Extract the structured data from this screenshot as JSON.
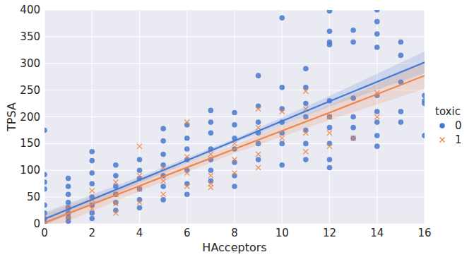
{
  "chart_data": {
    "type": "scatter",
    "x_label": "HAcceptors",
    "y_label": "TPSA",
    "legend_title": "toxic",
    "legend": "right",
    "grid": true,
    "xlim": [
      0,
      16
    ],
    "ylim": [
      0,
      400
    ],
    "xticks": [
      0,
      2,
      4,
      6,
      8,
      10,
      12,
      14,
      16
    ],
    "yticks": [
      0,
      50,
      100,
      150,
      200,
      250,
      300,
      350,
      400
    ],
    "series": [
      {
        "name": "0",
        "color": "#4878CF",
        "marker": "circle",
        "x": [
          0,
          0,
          0,
          0,
          0,
          0,
          0,
          0,
          1,
          1,
          1,
          1,
          1,
          1,
          1,
          1,
          2,
          2,
          2,
          2,
          2,
          2,
          2,
          2,
          3,
          3,
          3,
          3,
          3,
          3,
          4,
          4,
          4,
          4,
          4,
          4,
          5,
          5,
          5,
          5,
          5,
          5,
          5,
          6,
          6,
          6,
          6,
          6,
          6,
          6,
          7,
          7,
          7,
          7,
          7,
          7,
          7,
          8,
          8,
          8,
          8,
          8,
          8,
          8,
          9,
          9,
          9,
          9,
          9,
          9,
          10,
          10,
          10,
          10,
          10,
          10,
          10,
          11,
          11,
          11,
          11,
          11,
          11,
          11,
          12,
          12,
          12,
          12,
          12,
          12,
          12,
          12,
          12,
          12,
          13,
          13,
          13,
          13,
          13,
          13,
          14,
          14,
          14,
          14,
          14,
          14,
          14,
          14,
          14,
          15,
          15,
          15,
          15,
          15,
          16,
          16,
          16,
          16
        ],
        "values": [
          175,
          92,
          78,
          65,
          35,
          20,
          10,
          3,
          85,
          70,
          55,
          40,
          30,
          20,
          12,
          5,
          135,
          118,
          95,
          75,
          50,
          35,
          20,
          10,
          110,
          90,
          70,
          55,
          40,
          25,
          120,
          100,
          85,
          65,
          45,
          30,
          178,
          155,
          130,
          110,
          90,
          70,
          45,
          185,
          160,
          140,
          120,
          100,
          75,
          55,
          212,
          190,
          170,
          140,
          120,
          100,
          80,
          208,
          185,
          160,
          140,
          115,
          90,
          70,
          277,
          220,
          190,
          170,
          150,
          120,
          385,
          255,
          215,
          190,
          170,
          150,
          110,
          290,
          255,
          225,
          200,
          175,
          150,
          120,
          398,
          360,
          340,
          335,
          230,
          200,
          180,
          150,
          120,
          105,
          362,
          340,
          235,
          200,
          180,
          160,
          400,
          378,
          355,
          330,
          240,
          210,
          190,
          165,
          145,
          340,
          315,
          265,
          210,
          190,
          240,
          230,
          225,
          165
        ],
        "fit": {
          "x": [
            0,
            4,
            8,
            12,
            16
          ],
          "values": [
            9,
            82,
            155,
            229,
            302
          ],
          "lower": [
            -3,
            76,
            151,
            219,
            282
          ],
          "upper": [
            21,
            88,
            159,
            239,
            322
          ]
        }
      },
      {
        "name": "1",
        "color": "#EE854A",
        "marker": "x",
        "x": [
          1,
          1,
          2,
          2,
          2,
          3,
          3,
          3,
          3,
          4,
          4,
          4,
          4,
          5,
          5,
          5,
          6,
          6,
          6,
          6,
          7,
          7,
          7,
          7,
          8,
          8,
          8,
          9,
          9,
          9,
          9,
          10,
          10,
          11,
          11,
          11,
          11,
          12,
          12,
          12,
          13,
          14,
          14
        ],
        "values": [
          30,
          12,
          62,
          45,
          28,
          78,
          55,
          38,
          20,
          145,
          90,
          65,
          40,
          105,
          80,
          55,
          190,
          125,
          95,
          70,
          130,
          90,
          75,
          68,
          150,
          120,
          95,
          215,
          180,
          130,
          105,
          210,
          160,
          248,
          215,
          170,
          135,
          200,
          170,
          145,
          160,
          245,
          200
        ],
        "fit": {
          "x": [
            0,
            4,
            8,
            12,
            16
          ],
          "values": [
            2,
            71,
            140,
            208,
            277
          ],
          "lower": [
            -14,
            61,
            132,
            194,
            252
          ],
          "upper": [
            18,
            81,
            148,
            222,
            302
          ]
        }
      }
    ]
  }
}
